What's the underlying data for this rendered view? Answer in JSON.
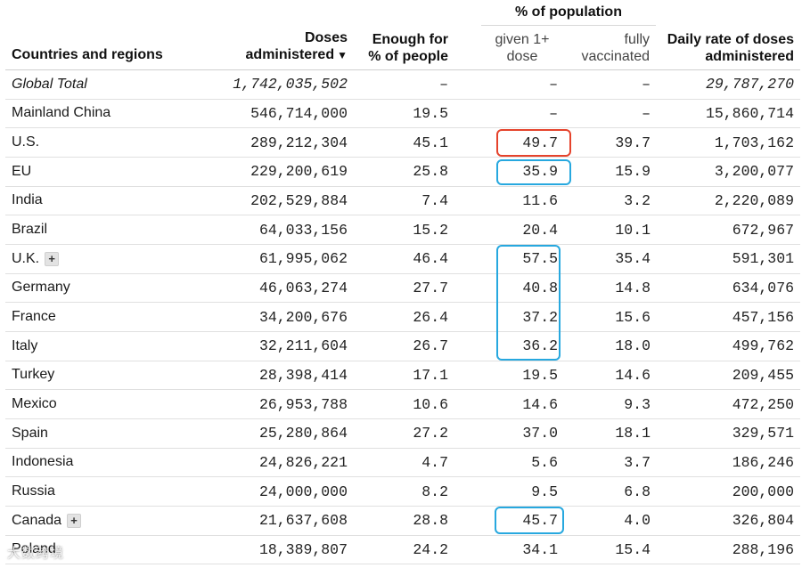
{
  "header": {
    "group_title": "% of population",
    "countries": "Countries and regions",
    "doses_line1": "Doses",
    "doses_line2": "administered",
    "sort_arrow": "▼",
    "enough_line1": "Enough for",
    "enough_line2": "% of people",
    "given_line1": "given 1+",
    "given_line2": "dose",
    "fully_line1": "fully",
    "fully_line2": "vaccinated",
    "daily_line1": "Daily rate of doses",
    "daily_line2": "administered"
  },
  "rows": [
    {
      "name": "Global Total",
      "doses": "1,742,035,502",
      "enough": "–",
      "given": "–",
      "fully": "–",
      "daily": "29,787,270"
    },
    {
      "name": "Mainland China",
      "doses": "546,714,000",
      "enough": "19.5",
      "given": "–",
      "fully": "–",
      "daily": "15,860,714"
    },
    {
      "name": "U.S.",
      "doses": "289,212,304",
      "enough": "45.1",
      "given": "49.7",
      "fully": "39.7",
      "daily": "1,703,162"
    },
    {
      "name": "EU",
      "doses": "229,200,619",
      "enough": "25.8",
      "given": "35.9",
      "fully": "15.9",
      "daily": "3,200,077"
    },
    {
      "name": "India",
      "doses": "202,529,884",
      "enough": "7.4",
      "given": "11.6",
      "fully": "3.2",
      "daily": "2,220,089"
    },
    {
      "name": "Brazil",
      "doses": "64,033,156",
      "enough": "15.2",
      "given": "20.4",
      "fully": "10.1",
      "daily": "672,967"
    },
    {
      "name": "U.K.",
      "doses": "61,995,062",
      "enough": "46.4",
      "given": "57.5",
      "fully": "35.4",
      "daily": "591,301"
    },
    {
      "name": "Germany",
      "doses": "46,063,274",
      "enough": "27.7",
      "given": "40.8",
      "fully": "14.8",
      "daily": "634,076"
    },
    {
      "name": "France",
      "doses": "34,200,676",
      "enough": "26.4",
      "given": "37.2",
      "fully": "15.6",
      "daily": "457,156"
    },
    {
      "name": "Italy",
      "doses": "32,211,604",
      "enough": "26.7",
      "given": "36.2",
      "fully": "18.0",
      "daily": "499,762"
    },
    {
      "name": "Turkey",
      "doses": "28,398,414",
      "enough": "17.1",
      "given": "19.5",
      "fully": "14.6",
      "daily": "209,455"
    },
    {
      "name": "Mexico",
      "doses": "26,953,788",
      "enough": "10.6",
      "given": "14.6",
      "fully": "9.3",
      "daily": "472,250"
    },
    {
      "name": "Spain",
      "doses": "25,280,864",
      "enough": "27.2",
      "given": "37.0",
      "fully": "18.1",
      "daily": "329,571"
    },
    {
      "name": "Indonesia",
      "doses": "24,826,221",
      "enough": "4.7",
      "given": "5.6",
      "fully": "3.7",
      "daily": "186,246"
    },
    {
      "name": "Russia",
      "doses": "24,000,000",
      "enough": "8.2",
      "given": "9.5",
      "fully": "6.8",
      "daily": "200,000"
    },
    {
      "name": "Canada",
      "doses": "21,637,608",
      "enough": "28.8",
      "given": "45.7",
      "fully": "4.0",
      "daily": "326,804"
    },
    {
      "name": "Poland",
      "doses": "18,389,807",
      "enough": "24.2",
      "given": "34.1",
      "fully": "15.4",
      "daily": "288,196"
    }
  ],
  "expand_symbol": "+",
  "watermark": "大数跨境",
  "colors": {
    "highlight_red": "#e5432c",
    "highlight_blue": "#27a8df"
  }
}
